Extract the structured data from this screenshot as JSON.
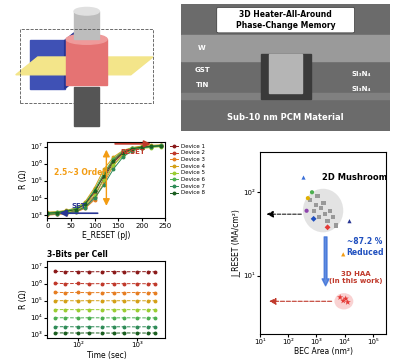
{
  "chart_data": [
    {
      "type": "line",
      "x_label": "E_RESET (pJ)",
      "y_label": "R (Ω)",
      "log": "y",
      "xlim": [
        0,
        250
      ],
      "xticks": [
        0,
        50,
        100,
        150,
        200,
        250
      ],
      "ylim": [
        700,
        20000000
      ],
      "yticks": [
        {
          "value": 1000,
          "label": "10³"
        },
        {
          "value": 10000,
          "label": "10⁴"
        },
        {
          "value": 100000,
          "label": "10⁵"
        },
        {
          "value": 1000000,
          "label": "10⁶"
        },
        {
          "value": 10000000,
          "label": "10⁷"
        }
      ],
      "legend": "upper left",
      "marker": "circle",
      "line_style": "solid",
      "annotations": [
        "2.5~3 Order",
        "RESET",
        "SET"
      ],
      "x": [
        0,
        20,
        40,
        60,
        80,
        100,
        120,
        140,
        160,
        180,
        200,
        220,
        240
      ],
      "series": [
        {
          "name": "Device 1",
          "color": "#8B1A1A",
          "values": [
            1100,
            1200,
            1400,
            1800,
            3000,
            12000,
            150000,
            1200000,
            4000000,
            7000000,
            9000000,
            10000000,
            11000000
          ]
        },
        {
          "name": "Device 2",
          "color": "#C0392B",
          "values": [
            1300,
            1400,
            1600,
            2200,
            4000,
            20000,
            250000,
            1800000,
            5000000,
            8000000,
            10000000,
            11000000,
            12000000
          ]
        },
        {
          "name": "Device 3",
          "color": "#E67E22",
          "values": [
            1000,
            1100,
            1200,
            1500,
            2500,
            8000,
            80000,
            800000,
            3500000,
            7000000,
            9000000,
            10000000,
            11000000
          ]
        },
        {
          "name": "Device 4",
          "color": "#D4A017",
          "values": [
            1500,
            1600,
            1900,
            2600,
            6000,
            40000,
            500000,
            2500000,
            6000000,
            9000000,
            11000000,
            12000000,
            13000000
          ]
        },
        {
          "name": "Device 5",
          "color": "#9ACD32",
          "values": [
            1200,
            1300,
            1500,
            1900,
            3500,
            15000,
            120000,
            900000,
            3000000,
            6000000,
            8000000,
            9000000,
            10000000
          ]
        },
        {
          "name": "Device 6",
          "color": "#4CAF50",
          "values": [
            1400,
            1500,
            1800,
            2500,
            5000,
            30000,
            300000,
            2000000,
            5500000,
            8500000,
            10000000,
            11000000,
            12000000
          ]
        },
        {
          "name": "Device 7",
          "color": "#2E8B57",
          "values": [
            1100,
            1200,
            1300,
            1600,
            2800,
            10000,
            60000,
            500000,
            2500000,
            6000000,
            8500000,
            10000000,
            11000000
          ]
        },
        {
          "name": "Device 8",
          "color": "#1B5E20",
          "values": [
            1300,
            1400,
            1700,
            2100,
            4500,
            25000,
            200000,
            1500000,
            4500000,
            7500000,
            9500000,
            10500000,
            11500000
          ]
        }
      ]
    },
    {
      "type": "line",
      "x_label": "Time (sec)",
      "y_label": "R (Ω)",
      "log": true,
      "xlim": [
        30,
        3000
      ],
      "xticks": [
        {
          "value": 100,
          "label": "10²"
        },
        {
          "value": 1000,
          "label": "10³"
        }
      ],
      "ylim": [
        700,
        20000000
      ],
      "yticks": [
        {
          "value": 1000,
          "label": "10³"
        },
        {
          "value": 10000,
          "label": "10⁴"
        },
        {
          "value": 100000,
          "label": "10⁵"
        },
        {
          "value": 1000000,
          "label": "10⁶"
        },
        {
          "value": 10000000,
          "label": "10⁷"
        }
      ],
      "marker": "circle",
      "line_style": "dashed",
      "annotations": [
        "3-Bits per Cell"
      ],
      "x": [
        40,
        60,
        100,
        150,
        250,
        400,
        600,
        1000,
        1500,
        2000
      ],
      "series": [
        {
          "color": "#1B5E20",
          "values": [
            1300,
            1320,
            1290,
            1310,
            1300,
            1280,
            1310,
            1300,
            1290,
            1300
          ]
        },
        {
          "color": "#2E8B57",
          "values": [
            3000,
            3050,
            2980,
            3020,
            2990,
            3010,
            3000,
            2970,
            3020,
            3000
          ]
        },
        {
          "color": "#4CAF50",
          "values": [
            10000,
            10200,
            9900,
            10100,
            10000,
            9950,
            10050,
            10000,
            9900,
            10000
          ]
        },
        {
          "color": "#9ACD32",
          "values": [
            30000,
            30500,
            29800,
            30200,
            30000,
            29700,
            30100,
            30000,
            29800,
            30100
          ]
        },
        {
          "color": "#D4A017",
          "values": [
            100000,
            101000,
            99000,
            100500,
            100000,
            99500,
            100200,
            100000,
            99000,
            100000
          ]
        },
        {
          "color": "#E67E22",
          "values": [
            310000,
            300000,
            305000,
            295000,
            300000,
            300000,
            298000,
            302000,
            297000,
            300000
          ]
        },
        {
          "color": "#C0392B",
          "values": [
            1050000,
            1000000,
            1020000,
            980000,
            1000000,
            1010000,
            990000,
            1000000,
            980000,
            1000000
          ]
        },
        {
          "color": "#8B1A1A",
          "values": [
            5200000,
            5000000,
            5100000,
            4900000,
            5000000,
            5100000,
            4900000,
            5000000,
            5000000,
            4900000
          ]
        }
      ]
    },
    {
      "type": "scatter",
      "x_label": "BEC Area (nm²)",
      "y_label": "J_RESET (MA/cm²)",
      "log": true,
      "xlim": [
        10,
        300000
      ],
      "xticks": [
        {
          "value": 10,
          "label": "10¹"
        },
        {
          "value": 100,
          "label": "10²"
        },
        {
          "value": 1000,
          "label": "10³"
        },
        {
          "value": 10000,
          "label": "10⁴"
        },
        {
          "value": 100000,
          "label": "10⁵"
        }
      ],
      "ylim": [
        2,
        300
      ],
      "yticks": [
        {
          "value": 10,
          "label": "10¹"
        },
        {
          "value": 100,
          "label": "10²"
        }
      ],
      "annotations": [
        "2D Mushroom",
        "~87.2 %\nReduced",
        "3D HAA\n(in this work)"
      ],
      "series": [
        {
          "color": "#999999",
          "marker": "square",
          "x": [
            600,
            800,
            1000,
            1200,
            1500,
            2000,
            2500,
            3000,
            4000,
            5000,
            1100,
            1800
          ],
          "y": [
            80,
            60,
            70,
            50,
            65,
            55,
            45,
            60,
            50,
            40,
            90,
            75
          ]
        },
        {
          "color": "#3A6FD8",
          "marker": "triangle",
          "x": [
            350
          ],
          "y": [
            150
          ]
        },
        {
          "color": "#4CAF50",
          "marker": "circle",
          "x": [
            700
          ],
          "y": [
            100
          ]
        },
        {
          "color": "#E0B000",
          "marker": "circle",
          "x": [
            500
          ],
          "y": [
            85
          ]
        },
        {
          "color": "#8E44AD",
          "marker": "circle",
          "x": [
            450
          ],
          "y": [
            60
          ]
        },
        {
          "color": "#1F4FBF",
          "marker": "diamond",
          "x": [
            800
          ],
          "y": [
            48
          ]
        },
        {
          "color": "#E53935",
          "marker": "diamond",
          "x": [
            2500
          ],
          "y": [
            38
          ]
        },
        {
          "color": "#F39C12",
          "marker": "triangle",
          "x": [
            9000
          ],
          "y": [
            18
          ]
        },
        {
          "color": "#283593",
          "marker": "triangle",
          "x": [
            15000
          ],
          "y": [
            45
          ]
        },
        {
          "color": "#E53935",
          "marker": "star",
          "x": [
            7000,
            9000,
            11000,
            13000
          ],
          "y": [
            5.5,
            5.0,
            5.3,
            4.8
          ]
        }
      ]
    }
  ],
  "sem_image": {
    "title": "3D Heater-All-Around\nPhase-Change Memory",
    "labels": [
      "W",
      "GST",
      "TiN",
      "Si₃N₄",
      "Si₃N₄"
    ],
    "caption": "Sub-10 nm PCM Material"
  }
}
